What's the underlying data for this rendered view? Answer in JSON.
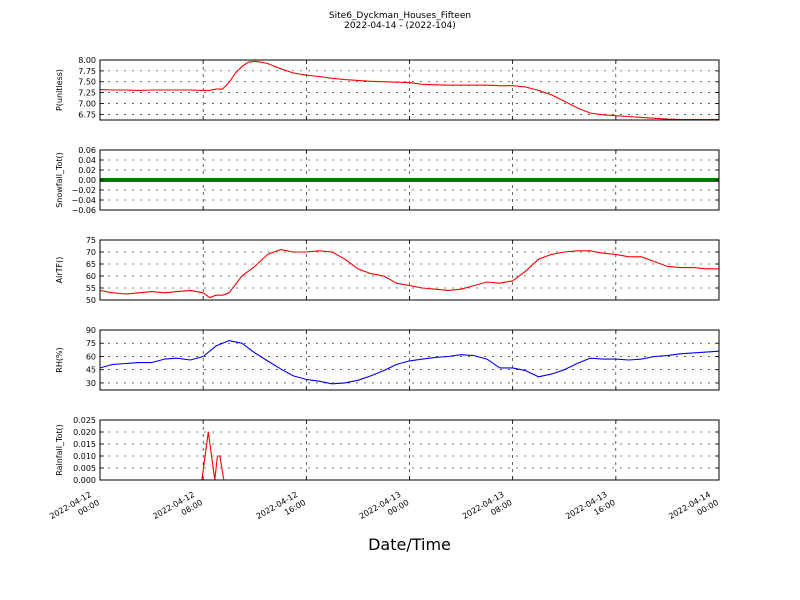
{
  "title": "Site6_Dyckman_Houses_Fifteen",
  "subtitle": "2022-04-14 - (2022-104)",
  "chart_data": {
    "type": "line",
    "xlabel": "Date/Time",
    "x_ticks": [
      {
        "hours": 0,
        "line1": "2022-04-12",
        "line2": "00:00"
      },
      {
        "hours": 8,
        "line1": "2022-04-12",
        "line2": "08:00"
      },
      {
        "hours": 16,
        "line1": "2022-04-12",
        "line2": "16:00"
      },
      {
        "hours": 24,
        "line1": "2022-04-13",
        "line2": "00:00"
      },
      {
        "hours": 32,
        "line1": "2022-04-13",
        "line2": "08:00"
      },
      {
        "hours": 40,
        "line1": "2022-04-13",
        "line2": "16:00"
      },
      {
        "hours": 48,
        "line1": "2022-04-14",
        "line2": "00:00"
      }
    ],
    "xlim": [
      0,
      48
    ],
    "grid": true,
    "panels": [
      {
        "ylabel": "P(unitless)",
        "color": "#ff0000",
        "ylim": [
          6.62,
          8.0
        ],
        "yticks": [
          "8.00",
          "7.75",
          "7.50",
          "7.25",
          "7.00",
          "6.75"
        ],
        "ytick_values": [
          8.0,
          7.75,
          7.5,
          7.25,
          7.0,
          6.75
        ],
        "x": [
          0,
          1,
          2,
          3,
          4,
          5,
          6,
          7,
          8,
          8.5,
          9,
          9.5,
          10,
          10.5,
          11,
          11.5,
          12,
          12.5,
          13,
          14,
          15,
          16,
          17,
          18,
          19,
          20,
          21,
          22,
          23,
          24,
          25,
          26,
          27,
          28,
          29,
          30,
          31,
          32,
          33,
          34,
          35,
          36,
          37,
          38,
          39,
          40,
          41,
          42,
          43,
          44,
          45,
          46,
          47,
          48
        ],
        "values": [
          7.32,
          7.31,
          7.31,
          7.3,
          7.31,
          7.31,
          7.31,
          7.31,
          7.3,
          7.3,
          7.33,
          7.33,
          7.48,
          7.7,
          7.85,
          7.95,
          7.97,
          7.95,
          7.92,
          7.8,
          7.7,
          7.65,
          7.62,
          7.58,
          7.55,
          7.53,
          7.51,
          7.5,
          7.49,
          7.48,
          7.44,
          7.43,
          7.42,
          7.42,
          7.42,
          7.42,
          7.41,
          7.41,
          7.38,
          7.3,
          7.2,
          7.05,
          6.9,
          6.78,
          6.74,
          6.72,
          6.7,
          6.68,
          6.66,
          6.64,
          6.63,
          6.63,
          6.63,
          6.63
        ]
      },
      {
        "ylabel": "Snowfall_Tot()",
        "color": "#008000",
        "ylim": [
          -0.06,
          0.06
        ],
        "yticks": [
          "0.06",
          "0.04",
          "0.02",
          "0.00",
          "−0.02",
          "−0.04",
          "−0.06"
        ],
        "ytick_values": [
          0.06,
          0.04,
          0.02,
          0.0,
          -0.02,
          -0.04,
          -0.06
        ],
        "x": [
          0,
          48
        ],
        "values": [
          0,
          0
        ],
        "thick": true
      },
      {
        "ylabel": "AirTF()",
        "color": "#ff0000",
        "ylim": [
          50,
          75
        ],
        "yticks": [
          "75",
          "70",
          "65",
          "60",
          "55",
          "50"
        ],
        "ytick_values": [
          75,
          70,
          65,
          60,
          55,
          50
        ],
        "x": [
          0,
          1,
          2,
          3,
          4,
          5,
          6,
          7,
          8,
          8.5,
          9,
          9.5,
          10,
          11,
          12,
          13,
          14,
          15,
          16,
          17,
          18,
          19,
          20,
          21,
          22,
          23,
          24,
          25,
          26,
          27,
          28,
          29,
          30,
          31,
          32,
          33,
          34,
          35,
          36,
          37,
          38,
          39,
          40,
          41,
          42,
          43,
          44,
          45,
          46,
          47,
          48
        ],
        "values": [
          54,
          53,
          52.5,
          53,
          53.5,
          53,
          53.5,
          54,
          53,
          51,
          52,
          52,
          53,
          60,
          64,
          69,
          71,
          70,
          70,
          70.5,
          70,
          67,
          63,
          61,
          60,
          57,
          56,
          55,
          54.5,
          54,
          54.5,
          56,
          57.5,
          57,
          58,
          62,
          67,
          69,
          70,
          70.5,
          70.5,
          69.5,
          69,
          68,
          68,
          66,
          64,
          63.5,
          63.5,
          63,
          63
        ]
      },
      {
        "ylabel": "RH(%)",
        "color": "#0000ff",
        "ylim": [
          22,
          90
        ],
        "yticks": [
          "90",
          "75",
          "60",
          "45",
          "30"
        ],
        "ytick_values": [
          90,
          75,
          60,
          45,
          30
        ],
        "x": [
          0,
          1,
          2,
          3,
          4,
          5,
          6,
          7,
          8,
          9,
          10,
          11,
          12,
          13,
          14,
          15,
          16,
          17,
          18,
          19,
          20,
          21,
          22,
          23,
          24,
          25,
          26,
          27,
          28,
          29,
          30,
          31,
          32,
          33,
          34,
          35,
          36,
          37,
          38,
          39,
          40,
          41,
          42,
          43,
          44,
          45,
          46,
          47,
          48
        ],
        "values": [
          47,
          51,
          52,
          53,
          53,
          57,
          58,
          56,
          60,
          72,
          78,
          75,
          64,
          55,
          46,
          38,
          34,
          32,
          29,
          30,
          33,
          38,
          44,
          51,
          55,
          57,
          59,
          60,
          62,
          61,
          57,
          47,
          47,
          44,
          37,
          40,
          45,
          52,
          58,
          57,
          57,
          56,
          57,
          60,
          61,
          63,
          64,
          65,
          66
        ]
      },
      {
        "ylabel": "Rainfall_Tot()",
        "color": "#ff0000",
        "ylim": [
          0,
          0.025
        ],
        "yticks": [
          "0.025",
          "0.020",
          "0.015",
          "0.010",
          "0.005",
          "0.000"
        ],
        "ytick_values": [
          0.025,
          0.02,
          0.015,
          0.01,
          0.005,
          0.0
        ],
        "x": [
          0,
          7.9,
          8.4,
          8.9,
          9.1,
          9.3,
          9.6,
          9.7,
          48
        ],
        "values": [
          0,
          0,
          0.02,
          0,
          0.01,
          0.01,
          0,
          0,
          0
        ]
      }
    ]
  }
}
